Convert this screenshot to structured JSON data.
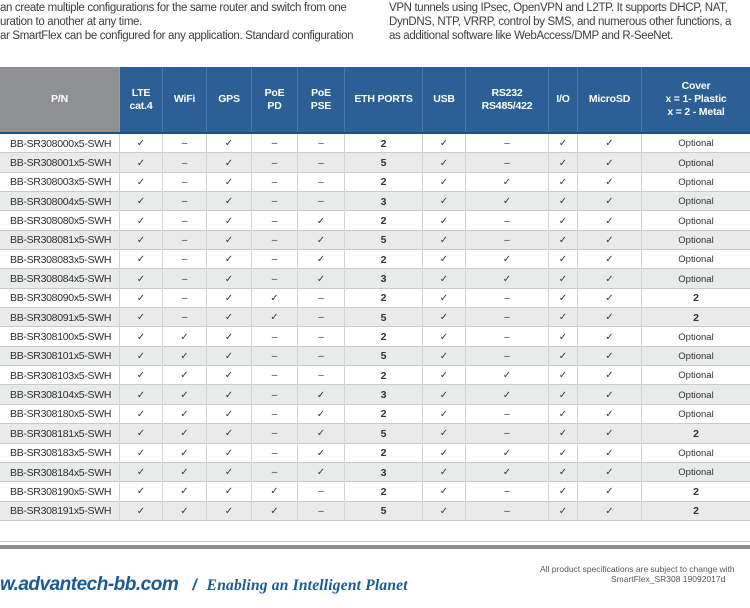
{
  "intro": {
    "left_lines": [
      "an create multiple configurations for the same router and switch from one",
      "uration to another at any time.",
      "ar SmartFlex can be configured for any application. Standard configuration"
    ],
    "right_lines": [
      "VPN tunnels using IPsec, OpenVPN and L2TP. It supports DHCP, NAT,",
      "DynDNS, NTP, VRRP, control by SMS, and numerous other functions, a",
      "as additional software like WebAccess/DMP and R-SeeNet."
    ]
  },
  "table": {
    "columns": [
      {
        "id": "pn",
        "label": "P/N"
      },
      {
        "id": "lte_cat4",
        "label": "LTE\ncat.4"
      },
      {
        "id": "wifi",
        "label": "WiFi"
      },
      {
        "id": "gps",
        "label": "GPS"
      },
      {
        "id": "poe_pd",
        "label": "PoE\nPD"
      },
      {
        "id": "poe_pse",
        "label": "PoE\nPSE"
      },
      {
        "id": "eth_ports",
        "label": "ETH PORTS"
      },
      {
        "id": "usb",
        "label": "USB"
      },
      {
        "id": "rs232_rs485",
        "label": "RS232\nRS485/422"
      },
      {
        "id": "io",
        "label": "I/O"
      },
      {
        "id": "microsd",
        "label": "MicroSD"
      },
      {
        "id": "cover",
        "label": "Cover\nx = 1- Plastic\nx = 2 - Metal"
      }
    ],
    "check_symbol": "✓",
    "none_symbol": "–",
    "rows": [
      [
        "BB-SR308000x5-SWH",
        "✓",
        "–",
        "✓",
        "–",
        "–",
        "2",
        "✓",
        "–",
        "✓",
        "✓",
        "Optional"
      ],
      [
        "BB-SR308001x5-SWH",
        "✓",
        "–",
        "✓",
        "–",
        "–",
        "5",
        "✓",
        "–",
        "✓",
        "✓",
        "Optional"
      ],
      [
        "BB-SR308003x5-SWH",
        "✓",
        "–",
        "✓",
        "–",
        "–",
        "2",
        "✓",
        "✓",
        "✓",
        "✓",
        "Optional"
      ],
      [
        "BB-SR308004x5-SWH",
        "✓",
        "–",
        "✓",
        "–",
        "–",
        "3",
        "✓",
        "✓",
        "✓",
        "✓",
        "Optional"
      ],
      [
        "BB-SR308080x5-SWH",
        "✓",
        "–",
        "✓",
        "–",
        "✓",
        "2",
        "✓",
        "–",
        "✓",
        "✓",
        "Optional"
      ],
      [
        "BB-SR308081x5-SWH",
        "✓",
        "–",
        "✓",
        "–",
        "✓",
        "5",
        "✓",
        "–",
        "✓",
        "✓",
        "Optional"
      ],
      [
        "BB-SR308083x5-SWH",
        "✓",
        "–",
        "✓",
        "–",
        "✓",
        "2",
        "✓",
        "✓",
        "✓",
        "✓",
        "Optional"
      ],
      [
        "BB-SR308084x5-SWH",
        "✓",
        "–",
        "✓",
        "–",
        "✓",
        "3",
        "✓",
        "✓",
        "✓",
        "✓",
        "Optional"
      ],
      [
        "BB-SR308090x5-SWH",
        "✓",
        "–",
        "✓",
        "✓",
        "–",
        "2",
        "✓",
        "–",
        "✓",
        "✓",
        "2"
      ],
      [
        "BB-SR308091x5-SWH",
        "✓",
        "–",
        "✓",
        "✓",
        "–",
        "5",
        "✓",
        "–",
        "✓",
        "✓",
        "2"
      ],
      [
        "BB-SR308100x5-SWH",
        "✓",
        "✓",
        "✓",
        "–",
        "–",
        "2",
        "✓",
        "–",
        "✓",
        "✓",
        "Optional"
      ],
      [
        "BB-SR308101x5-SWH",
        "✓",
        "✓",
        "✓",
        "–",
        "–",
        "5",
        "✓",
        "–",
        "✓",
        "✓",
        "Optional"
      ],
      [
        "BB-SR308103x5-SWH",
        "✓",
        "✓",
        "✓",
        "–",
        "–",
        "2",
        "✓",
        "✓",
        "✓",
        "✓",
        "Optional"
      ],
      [
        "BB-SR308104x5-SWH",
        "✓",
        "✓",
        "✓",
        "–",
        "✓",
        "3",
        "✓",
        "✓",
        "✓",
        "✓",
        "Optional"
      ],
      [
        "BB-SR308180x5-SWH",
        "✓",
        "✓",
        "✓",
        "–",
        "✓",
        "2",
        "✓",
        "–",
        "✓",
        "✓",
        "Optional"
      ],
      [
        "BB-SR308181x5-SWH",
        "✓",
        "✓",
        "✓",
        "–",
        "✓",
        "5",
        "✓",
        "–",
        "✓",
        "✓",
        "2"
      ],
      [
        "BB-SR308183x5-SWH",
        "✓",
        "✓",
        "✓",
        "–",
        "✓",
        "2",
        "✓",
        "✓",
        "✓",
        "✓",
        "Optional"
      ],
      [
        "BB-SR308184x5-SWH",
        "✓",
        "✓",
        "✓",
        "–",
        "✓",
        "3",
        "✓",
        "✓",
        "✓",
        "✓",
        "Optional"
      ],
      [
        "BB-SR308190x5-SWH",
        "✓",
        "✓",
        "✓",
        "✓",
        "–",
        "2",
        "✓",
        "–",
        "✓",
        "✓",
        "2"
      ],
      [
        "BB-SR308191x5-SWH",
        "✓",
        "✓",
        "✓",
        "✓",
        "–",
        "5",
        "✓",
        "–",
        "✓",
        "✓",
        "2"
      ]
    ]
  },
  "footer": {
    "website": "w.advantech-bb.com",
    "separator": "/",
    "slogan": "Enabling an Intelligent Planet",
    "disclaimer": "All product specifications are subject to change with",
    "doc_id": "SmartFlex_SR308 19092017d"
  },
  "colors": {
    "header_blue": "#2b5f96",
    "header_gray": "#8f9091",
    "row_stripe": "#e9eaea",
    "rule_gray": "#8c8e90",
    "footer_blue": "#1a5a96"
  }
}
